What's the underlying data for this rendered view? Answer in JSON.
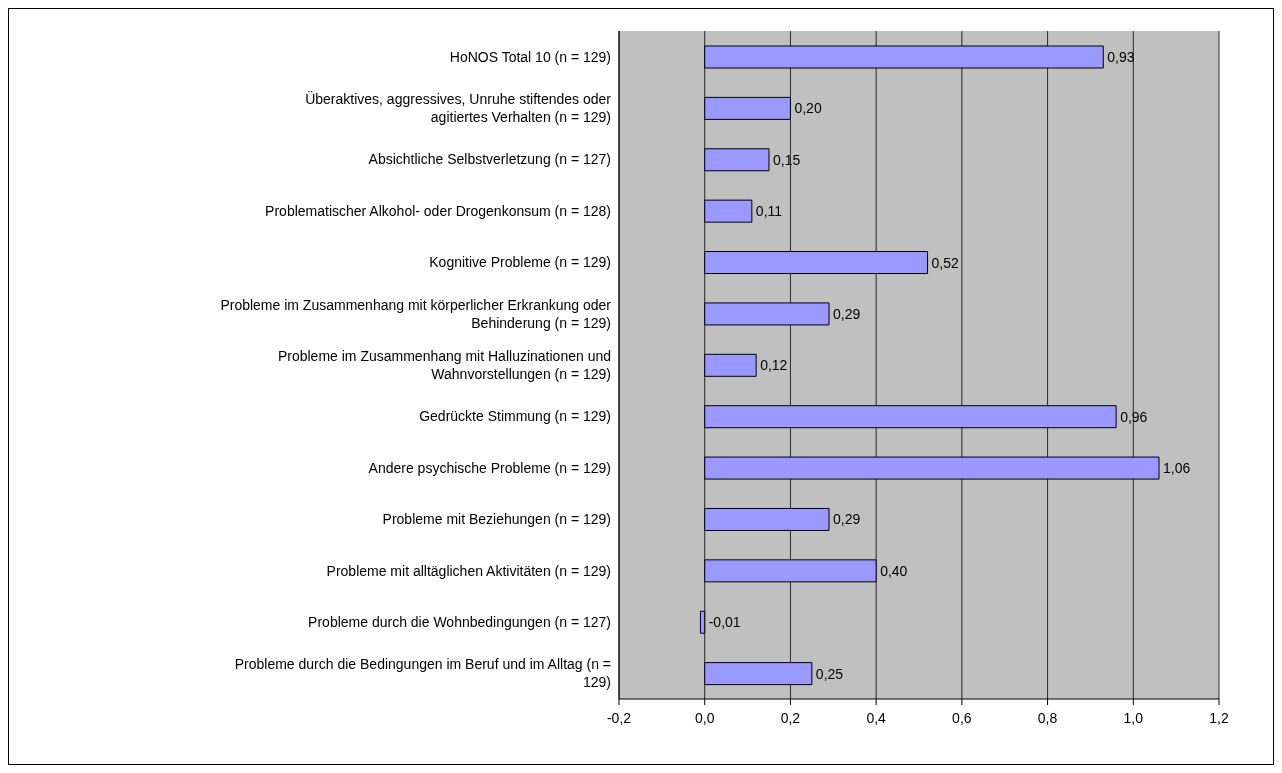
{
  "chart_data": {
    "type": "bar",
    "orientation": "horizontal",
    "categories": [
      "HoNOS Total 10 (n = 129)",
      "Überaktives, aggressives, Unruhe stiftendes oder agitiertes Verhalten (n = 129)",
      "Absichtliche Selbstverletzung (n = 127)",
      "Problematischer Alkohol- oder Drogenkonsum (n = 128)",
      "Kognitive Probleme (n = 129)",
      "Probleme im Zusammenhang mit körperlicher Erkrankung oder Behinderung (n = 129)",
      "Probleme im Zusammenhang mit Halluzinationen und Wahnvorstellungen (n = 129)",
      "Gedrückte Stimmung (n = 129)",
      "Andere psychische Probleme (n = 129)",
      "Probleme mit Beziehungen (n = 129)",
      "Probleme mit alltäglichen Aktivitäten (n = 129)",
      "Probleme durch die Wohnbedingungen (n = 127)",
      "Probleme durch die Bedingungen im Beruf und im Alltag (n = 129)"
    ],
    "values": [
      0.93,
      0.2,
      0.15,
      0.11,
      0.52,
      0.29,
      0.12,
      0.96,
      1.06,
      0.29,
      0.4,
      -0.01,
      0.25
    ],
    "value_labels": [
      "0,93",
      "0,20",
      "0,15",
      "0,11",
      "0,52",
      "0,29",
      "0,12",
      "0,96",
      "1,06",
      "0,29",
      "0,40",
      "-0,01",
      "0,25"
    ],
    "color": "#9999ff",
    "xlim": [
      -0.2,
      1.2
    ],
    "xticks": [
      {
        "value": -0.2,
        "label": "-0,2"
      },
      {
        "value": 0,
        "label": "0,0"
      },
      {
        "value": 0.2,
        "label": "0,2"
      },
      {
        "value": 0.4,
        "label": "0,4"
      },
      {
        "value": 0.6,
        "label": "0,6"
      },
      {
        "value": 0.8,
        "label": "0,8"
      },
      {
        "value": 1.0,
        "label": "1,0"
      },
      {
        "value": 1.2,
        "label": "1,2"
      }
    ],
    "grid": "x"
  }
}
